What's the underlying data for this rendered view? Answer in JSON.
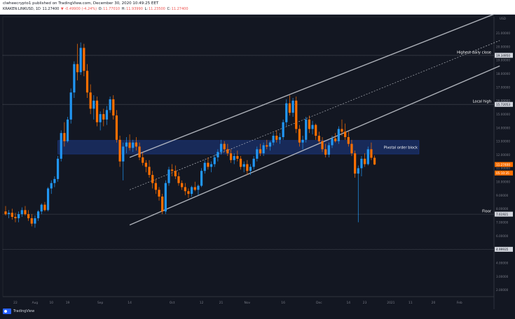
{
  "header": {
    "publisher_line": "clwheecrypto1 published on TradingView.com, December 30, 2020 10:49:25 EET",
    "symbol": "KRAKEN:LINKUSD, 1D",
    "last": "11.27400",
    "change": "▼ -0.49900 (-4.24%)",
    "o_label": "O:",
    "o_value": "11.77010",
    "h_label": "H:",
    "h_value": "11.93990",
    "l_label": "L:",
    "l_value": "11.23500",
    "c_label": "C:",
    "c_value": "11.27400"
  },
  "colors": {
    "background": "#131722",
    "up": "#2196f3",
    "down": "#ff6f00",
    "channel": "#c8cbd2",
    "hline": "#c8cbd2",
    "zone": "#2962ff",
    "price_tag": "#ff6f00"
  },
  "footer": {
    "brand": "TradingView",
    "logo_icon": "tradingview-logo-icon"
  },
  "chart_data": {
    "type": "candlestick",
    "currency_scale": "USD",
    "y_ticks": [
      "21.00000",
      "20.00000",
      "19.00000",
      "18.00000",
      "17.00000",
      "16.00000",
      "15.00000",
      "14.00000",
      "13.00000",
      "12.00000",
      "11.00000",
      "10.00000",
      "9.00000",
      "8.00000",
      "7.00000",
      "6.00000",
      "5.00000",
      "4.00000",
      "3.00000",
      "2.00000"
    ],
    "x_ticks": [
      "22",
      "Aug",
      "10",
      "19",
      "Sep",
      "14",
      "Oct",
      "12",
      "21",
      "Nov",
      "16",
      "Dec",
      "14",
      "23",
      "2021",
      "11",
      "20",
      "Feb"
    ],
    "ylim": [
      1.5,
      22.2
    ],
    "candles_ohlc": [
      [
        7.8,
        8.2,
        7.5,
        7.6
      ],
      [
        7.6,
        7.9,
        7.3,
        7.7
      ],
      [
        7.7,
        8.0,
        7.2,
        7.4
      ],
      [
        7.4,
        7.7,
        7.0,
        7.3
      ],
      [
        7.3,
        7.8,
        7.0,
        7.6
      ],
      [
        7.6,
        8.1,
        7.4,
        7.9
      ],
      [
        7.9,
        8.2,
        7.5,
        7.6
      ],
      [
        7.6,
        7.9,
        7.1,
        7.3
      ],
      [
        7.3,
        7.6,
        6.7,
        6.9
      ],
      [
        6.9,
        7.5,
        6.6,
        7.3
      ],
      [
        7.3,
        7.9,
        7.1,
        7.8
      ],
      [
        7.8,
        8.4,
        7.6,
        8.3
      ],
      [
        8.3,
        8.5,
        7.8,
        7.9
      ],
      [
        7.9,
        9.6,
        7.8,
        9.5
      ],
      [
        9.5,
        10.1,
        9.1,
        9.9
      ],
      [
        9.9,
        10.4,
        9.6,
        10.2
      ],
      [
        10.2,
        11.9,
        10.0,
        11.7
      ],
      [
        11.7,
        13.8,
        11.5,
        13.6
      ],
      [
        13.6,
        14.4,
        12.6,
        13.0
      ],
      [
        13.0,
        14.8,
        12.9,
        14.6
      ],
      [
        14.6,
        16.9,
        14.3,
        16.6
      ],
      [
        16.6,
        18.9,
        16.2,
        18.7
      ],
      [
        18.7,
        20.2,
        17.5,
        18.1
      ],
      [
        18.1,
        20.3,
        17.9,
        19.9
      ],
      [
        19.9,
        20.2,
        17.8,
        18.2
      ],
      [
        18.2,
        18.7,
        16.2,
        16.6
      ],
      [
        16.6,
        17.2,
        15.0,
        15.4
      ],
      [
        15.4,
        16.4,
        14.6,
        16.0
      ],
      [
        16.0,
        16.3,
        14.1,
        14.4
      ],
      [
        14.4,
        15.2,
        13.8,
        15.0
      ],
      [
        15.0,
        15.4,
        14.1,
        14.6
      ],
      [
        14.6,
        15.6,
        14.2,
        15.3
      ],
      [
        15.3,
        16.3,
        15.1,
        16.1
      ],
      [
        16.1,
        16.4,
        14.6,
        14.9
      ],
      [
        14.9,
        15.3,
        12.9,
        13.1
      ],
      [
        13.1,
        13.4,
        11.1,
        11.5
      ],
      [
        11.5,
        12.9,
        10.1,
        12.6
      ],
      [
        12.6,
        13.3,
        12.1,
        12.9
      ],
      [
        12.9,
        13.5,
        12.3,
        12.5
      ],
      [
        12.5,
        13.1,
        12.2,
        12.9
      ],
      [
        12.9,
        13.3,
        12.3,
        12.6
      ],
      [
        12.6,
        12.9,
        11.6,
        11.8
      ],
      [
        11.8,
        12.2,
        11.2,
        11.4
      ],
      [
        11.4,
        11.6,
        10.7,
        11.1
      ],
      [
        11.1,
        11.6,
        10.3,
        10.5
      ],
      [
        10.5,
        10.8,
        9.5,
        9.9
      ],
      [
        9.9,
        10.2,
        9.1,
        9.4
      ],
      [
        9.4,
        9.6,
        8.6,
        8.9
      ],
      [
        8.9,
        9.1,
        7.6,
        7.8
      ],
      [
        7.8,
        10.1,
        7.6,
        9.9
      ],
      [
        9.9,
        11.1,
        9.7,
        10.9
      ],
      [
        10.9,
        11.3,
        10.4,
        10.8
      ],
      [
        10.8,
        11.2,
        10.2,
        10.4
      ],
      [
        10.4,
        10.7,
        9.7,
        9.9
      ],
      [
        9.9,
        10.1,
        9.4,
        9.6
      ],
      [
        9.6,
        9.9,
        9.0,
        9.3
      ],
      [
        9.3,
        9.5,
        8.8,
        9.1
      ],
      [
        9.1,
        9.7,
        8.9,
        9.6
      ],
      [
        9.6,
        10.0,
        9.3,
        9.4
      ],
      [
        9.4,
        9.8,
        9.0,
        9.7
      ],
      [
        9.7,
        11.0,
        9.6,
        10.8
      ],
      [
        10.8,
        11.6,
        10.6,
        11.4
      ],
      [
        11.4,
        11.8,
        10.9,
        11.1
      ],
      [
        11.1,
        11.5,
        10.7,
        11.3
      ],
      [
        11.3,
        12.0,
        11.1,
        11.8
      ],
      [
        11.8,
        12.4,
        11.5,
        12.2
      ],
      [
        12.2,
        13.1,
        12.0,
        12.8
      ],
      [
        12.8,
        13.0,
        12.2,
        12.4
      ],
      [
        12.4,
        12.8,
        11.9,
        12.1
      ],
      [
        12.1,
        12.4,
        11.4,
        11.6
      ],
      [
        11.6,
        12.1,
        11.3,
        11.9
      ],
      [
        11.9,
        12.3,
        11.5,
        11.7
      ],
      [
        11.7,
        11.9,
        10.9,
        11.1
      ],
      [
        11.1,
        11.5,
        10.7,
        11.3
      ],
      [
        11.3,
        11.6,
        10.5,
        10.8
      ],
      [
        10.8,
        11.3,
        10.5,
        11.1
      ],
      [
        11.1,
        11.9,
        10.9,
        11.7
      ],
      [
        11.7,
        12.6,
        11.5,
        12.4
      ],
      [
        12.4,
        12.8,
        11.9,
        12.1
      ],
      [
        12.1,
        12.9,
        11.9,
        12.7
      ],
      [
        12.7,
        13.1,
        12.4,
        12.6
      ],
      [
        12.6,
        13.0,
        12.3,
        12.9
      ],
      [
        12.9,
        13.6,
        12.7,
        13.4
      ],
      [
        13.4,
        13.8,
        12.9,
        13.1
      ],
      [
        13.1,
        13.6,
        12.8,
        13.3
      ],
      [
        13.3,
        14.6,
        13.1,
        14.4
      ],
      [
        14.4,
        16.1,
        14.1,
        15.8
      ],
      [
        15.8,
        16.4,
        14.9,
        15.1
      ],
      [
        15.1,
        16.2,
        14.8,
        16.0
      ],
      [
        16.0,
        16.3,
        13.6,
        13.9
      ],
      [
        13.9,
        14.2,
        12.6,
        12.9
      ],
      [
        12.9,
        13.4,
        12.4,
        13.1
      ],
      [
        13.1,
        14.8,
        12.9,
        14.6
      ],
      [
        14.6,
        14.9,
        13.6,
        13.9
      ],
      [
        13.9,
        14.5,
        13.5,
        14.2
      ],
      [
        14.2,
        14.3,
        13.1,
        13.4
      ],
      [
        13.4,
        13.7,
        12.8,
        13.0
      ],
      [
        13.0,
        13.3,
        12.2,
        12.4
      ],
      [
        12.4,
        12.8,
        11.8,
        12.0
      ],
      [
        12.0,
        12.9,
        11.8,
        12.7
      ],
      [
        12.7,
        13.4,
        12.5,
        13.2
      ],
      [
        13.2,
        13.6,
        12.9,
        13.0
      ],
      [
        13.0,
        14.1,
        12.8,
        13.9
      ],
      [
        13.9,
        14.6,
        13.4,
        13.7
      ],
      [
        13.7,
        14.3,
        13.1,
        13.3
      ],
      [
        13.3,
        13.7,
        12.6,
        12.8
      ],
      [
        12.8,
        13.1,
        11.9,
        12.1
      ],
      [
        12.1,
        12.3,
        10.3,
        10.6
      ],
      [
        10.6,
        11.2,
        7.0,
        11.0
      ],
      [
        11.0,
        11.9,
        10.4,
        11.7
      ],
      [
        11.7,
        12.1,
        11.1,
        11.3
      ],
      [
        11.3,
        12.6,
        11.2,
        12.4
      ],
      [
        12.4,
        12.9,
        11.6,
        11.77
      ],
      [
        11.77,
        11.94,
        11.235,
        11.274
      ]
    ],
    "horizontal_lines": [
      {
        "label": "Highest daily close",
        "value": 19.3495,
        "tag": "19.34950"
      },
      {
        "label": "Local high",
        "value": 15.72053,
        "tag": "15.72053"
      },
      {
        "label": "Floor",
        "value": 7.6,
        "tag": "7.61921"
      },
      {
        "label": "",
        "value": 4.99935,
        "tag": "4.99935"
      }
    ],
    "zone": {
      "label": "Pivotal order block",
      "from": 12.05,
      "to": 13.05
    },
    "channel": {
      "upper": [
        [
          38,
          11.8
        ],
        [
          117,
          19.3
        ]
      ],
      "middle": [
        [
          38,
          9.4
        ],
        [
          117,
          17.1
        ]
      ],
      "lower": [
        [
          38,
          6.8
        ],
        [
          117,
          15.0
        ]
      ]
    },
    "price_tags": [
      {
        "text": "11.27400",
        "value": 11.274
      },
      {
        "text": "05:10:35",
        "value": 10.8
      }
    ],
    "scale_label": "USD"
  }
}
